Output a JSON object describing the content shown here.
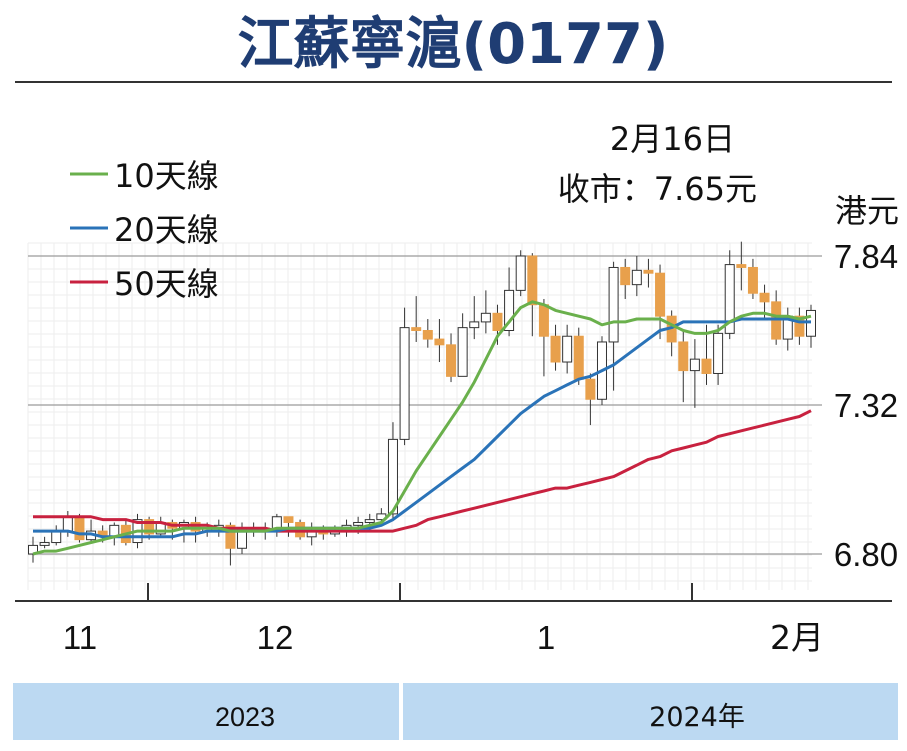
{
  "header": {
    "title": "江蘇寧滬(0177)"
  },
  "annotation": {
    "date": "2月16日",
    "close": "收市：7.65元"
  },
  "colors": {
    "title": "#1f3d73",
    "ma10": "#6ab04c",
    "ma20": "#2a73b8",
    "ma50": "#c8213f",
    "up": "#ffffff",
    "down": "#e8a04c",
    "band": "#bcd9f2"
  },
  "chart_data": {
    "type": "candlestick",
    "title": "江蘇寧滬(0177)",
    "ylabel": "港元",
    "yticks": [
      7.84,
      7.32,
      6.8
    ],
    "ylim": [
      6.75,
      7.87
    ],
    "grid": true,
    "legend": {
      "placement": "top-left",
      "entries": [
        {
          "name": "10天線",
          "color": "#6ab04c"
        },
        {
          "name": "20天線",
          "color": "#2a73b8"
        },
        {
          "name": "50天線",
          "color": "#c8213f"
        }
      ]
    },
    "x_month_labels": [
      "11",
      "12",
      "1",
      "2月"
    ],
    "year_labels": [
      "2023",
      "2024年"
    ],
    "last_close": 7.65,
    "candles": [
      [
        6.8,
        6.83,
        6.86,
        6.77
      ],
      [
        6.83,
        6.84,
        6.86,
        6.82
      ],
      [
        6.84,
        6.88,
        6.9,
        6.83
      ],
      [
        6.88,
        6.93,
        6.95,
        6.86
      ],
      [
        6.93,
        6.85,
        6.94,
        6.84
      ],
      [
        6.85,
        6.88,
        6.92,
        6.84
      ],
      [
        6.88,
        6.86,
        6.9,
        6.84
      ],
      [
        6.86,
        6.9,
        6.91,
        6.83
      ],
      [
        6.9,
        6.84,
        6.92,
        6.83
      ],
      [
        6.84,
        6.92,
        6.94,
        6.82
      ],
      [
        6.92,
        6.87,
        6.93,
        6.85
      ],
      [
        6.87,
        6.91,
        6.93,
        6.86
      ],
      [
        6.91,
        6.89,
        6.92,
        6.85
      ],
      [
        6.89,
        6.91,
        6.92,
        6.84
      ],
      [
        6.91,
        6.88,
        6.93,
        6.84
      ],
      [
        6.88,
        6.89,
        6.91,
        6.86
      ],
      [
        6.89,
        6.9,
        6.92,
        6.86
      ],
      [
        6.9,
        6.82,
        6.91,
        6.76
      ],
      [
        6.82,
        6.89,
        6.91,
        6.8
      ],
      [
        6.89,
        6.89,
        6.91,
        6.86
      ],
      [
        6.89,
        6.88,
        6.91,
        6.85
      ],
      [
        6.88,
        6.93,
        6.94,
        6.86
      ],
      [
        6.93,
        6.91,
        6.93,
        6.86
      ],
      [
        6.91,
        6.86,
        6.92,
        6.85
      ],
      [
        6.86,
        6.88,
        6.91,
        6.83
      ],
      [
        6.88,
        6.87,
        6.9,
        6.85
      ],
      [
        6.87,
        6.88,
        6.9,
        6.86
      ],
      [
        6.88,
        6.9,
        6.92,
        6.86
      ],
      [
        6.9,
        6.91,
        6.93,
        6.87
      ],
      [
        6.91,
        6.92,
        6.94,
        6.88
      ],
      [
        6.92,
        6.94,
        6.96,
        6.91
      ],
      [
        6.94,
        7.2,
        7.26,
        6.92
      ],
      [
        7.2,
        7.59,
        7.66,
        7.18
      ],
      [
        7.59,
        7.58,
        7.7,
        7.54
      ],
      [
        7.58,
        7.55,
        7.62,
        7.52
      ],
      [
        7.55,
        7.53,
        7.62,
        7.47
      ],
      [
        7.53,
        7.42,
        7.57,
        7.4
      ],
      [
        7.42,
        7.59,
        7.64,
        7.52
      ],
      [
        7.59,
        7.61,
        7.7,
        7.55
      ],
      [
        7.61,
        7.64,
        7.72,
        7.57
      ],
      [
        7.64,
        7.58,
        7.67,
        7.53
      ],
      [
        7.58,
        7.72,
        7.8,
        7.56
      ],
      [
        7.72,
        7.84,
        7.86,
        7.7
      ],
      [
        7.84,
        7.67,
        7.85,
        7.56
      ],
      [
        7.67,
        7.56,
        7.69,
        7.42
      ],
      [
        7.56,
        7.47,
        7.6,
        7.44
      ],
      [
        7.47,
        7.56,
        7.6,
        7.43
      ],
      [
        7.56,
        7.41,
        7.59,
        7.39
      ],
      [
        7.41,
        7.34,
        7.43,
        7.25
      ],
      [
        7.34,
        7.54,
        7.56,
        7.32
      ],
      [
        7.54,
        7.8,
        7.82,
        7.37
      ],
      [
        7.8,
        7.74,
        7.83,
        7.69
      ],
      [
        7.74,
        7.79,
        7.84,
        7.7
      ],
      [
        7.79,
        7.78,
        7.83,
        7.73
      ],
      [
        7.78,
        7.63,
        7.81,
        7.55
      ],
      [
        7.63,
        7.54,
        7.65,
        7.49
      ],
      [
        7.54,
        7.44,
        7.58,
        7.33
      ],
      [
        7.44,
        7.48,
        7.55,
        7.31
      ],
      [
        7.48,
        7.43,
        7.6,
        7.39
      ],
      [
        7.43,
        7.57,
        7.6,
        7.39
      ],
      [
        7.57,
        7.81,
        7.86,
        7.55
      ],
      [
        7.81,
        7.8,
        7.89,
        7.72
      ],
      [
        7.8,
        7.71,
        7.83,
        7.69
      ],
      [
        7.71,
        7.68,
        7.74,
        7.62
      ],
      [
        7.68,
        7.55,
        7.72,
        7.53
      ],
      [
        7.55,
        7.63,
        7.66,
        7.51
      ],
      [
        7.63,
        7.56,
        7.66,
        7.53
      ],
      [
        7.56,
        7.65,
        7.67,
        7.52
      ]
    ],
    "ma10": [
      6.8,
      6.81,
      6.81,
      6.82,
      6.83,
      6.84,
      6.85,
      6.86,
      6.87,
      6.88,
      6.88,
      6.88,
      6.88,
      6.89,
      6.89,
      6.89,
      6.89,
      6.88,
      6.88,
      6.88,
      6.88,
      6.89,
      6.89,
      6.89,
      6.89,
      6.89,
      6.89,
      6.89,
      6.89,
      6.9,
      6.91,
      6.95,
      7.02,
      7.09,
      7.15,
      7.21,
      7.27,
      7.33,
      7.4,
      7.48,
      7.56,
      7.61,
      7.66,
      7.68,
      7.67,
      7.65,
      7.64,
      7.63,
      7.62,
      7.6,
      7.61,
      7.61,
      7.62,
      7.62,
      7.62,
      7.6,
      7.58,
      7.57,
      7.57,
      7.58,
      7.61,
      7.63,
      7.64,
      7.64,
      7.63,
      7.63,
      7.62,
      7.63
    ],
    "ma20": [
      6.88,
      6.88,
      6.88,
      6.88,
      6.87,
      6.87,
      6.86,
      6.86,
      6.86,
      6.86,
      6.86,
      6.86,
      6.86,
      6.87,
      6.87,
      6.88,
      6.88,
      6.88,
      6.88,
      6.88,
      6.88,
      6.88,
      6.89,
      6.89,
      6.89,
      6.89,
      6.89,
      6.89,
      6.89,
      6.89,
      6.9,
      6.92,
      6.95,
      6.98,
      7.01,
      7.04,
      7.07,
      7.1,
      7.13,
      7.17,
      7.21,
      7.25,
      7.29,
      7.32,
      7.35,
      7.37,
      7.39,
      7.41,
      7.42,
      7.44,
      7.46,
      7.49,
      7.52,
      7.55,
      7.58,
      7.59,
      7.61,
      7.61,
      7.61,
      7.61,
      7.61,
      7.62,
      7.62,
      7.62,
      7.62,
      7.62,
      7.61,
      7.61
    ],
    "ma50": [
      6.93,
      6.93,
      6.93,
      6.93,
      6.93,
      6.93,
      6.92,
      6.92,
      6.92,
      6.91,
      6.91,
      6.91,
      6.9,
      6.9,
      6.9,
      6.9,
      6.89,
      6.89,
      6.89,
      6.89,
      6.89,
      6.88,
      6.88,
      6.88,
      6.88,
      6.88,
      6.88,
      6.88,
      6.88,
      6.88,
      6.88,
      6.88,
      6.89,
      6.9,
      6.92,
      6.93,
      6.94,
      6.95,
      6.96,
      6.97,
      6.98,
      6.99,
      7.0,
      7.01,
      7.02,
      7.03,
      7.03,
      7.04,
      7.05,
      7.06,
      7.07,
      7.09,
      7.11,
      7.13,
      7.14,
      7.16,
      7.17,
      7.18,
      7.19,
      7.21,
      7.22,
      7.23,
      7.24,
      7.25,
      7.26,
      7.27,
      7.28,
      7.3
    ]
  }
}
